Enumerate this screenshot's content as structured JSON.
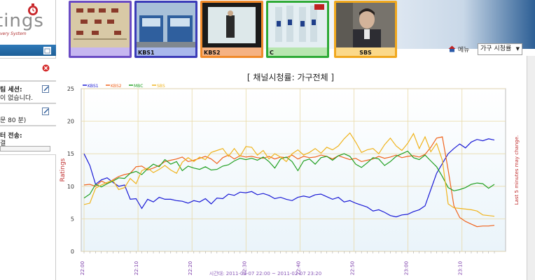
{
  "sidebar": {
    "logo_text": "tings",
    "logo_sub": "very System",
    "panel1": {
      "line1": "팀 세션:",
      "line2": "이 없습니다."
    },
    "panel2": {
      "line1": "문 80 분)"
    },
    "panel3": {
      "line1": "터 전송:",
      "line2": "결"
    }
  },
  "thumbnails": [
    {
      "label": "",
      "border": "#6a4bc4",
      "bg": "#d8c9a6"
    },
    {
      "label": "KBS1",
      "border": "#3b3bb8",
      "bg": "#7a99bb"
    },
    {
      "label": "KBS2",
      "border": "#f08a2a",
      "bg": "#cfdde0"
    },
    {
      "label": "C",
      "border": "#2eaa36",
      "bg": "#d8e8ee"
    },
    {
      "label": "SBS",
      "border": "#f0a81e",
      "bg": "#8f8a80"
    }
  ],
  "toolbar": {
    "menu_label": "메뉴",
    "select_value": "가구 시청률"
  },
  "chart_data": {
    "type": "line",
    "title": "[ 채널시청률: 가구전체 ]",
    "ylabel": "Ratings",
    "ylabel_right": "Last 5 minutes may change.",
    "xlabel": "시간대: 2011-02-07 22:00 ~ 2011-02-07 23:20",
    "ylim": [
      0,
      25
    ],
    "yticks": [
      "0",
      "5",
      "10",
      "15",
      "20",
      "25"
    ],
    "xticks": [
      "22:00",
      "22:10",
      "22:20",
      "22:30",
      "22:40",
      "22:50",
      "23:00",
      "23:10"
    ],
    "legend_position": "top-left",
    "series": [
      {
        "name": "KBS1",
        "color": "#1a1ad6",
        "values": [
          15.0,
          13.2,
          10.3,
          11.0,
          11.3,
          10.6,
          10.0,
          10.2,
          8.0,
          8.1,
          6.6,
          8.0,
          7.6,
          8.3,
          8.0,
          8.0,
          7.8,
          7.7,
          7.4,
          7.8,
          7.6,
          8.1,
          7.3,
          8.2,
          8.1,
          8.8,
          8.6,
          9.1,
          9.0,
          9.2,
          8.7,
          8.9,
          8.6,
          8.1,
          8.3,
          8.0,
          7.8,
          8.3,
          8.5,
          8.3,
          8.7,
          8.8,
          8.4,
          8.0,
          8.3,
          7.6,
          7.8,
          7.4,
          7.1,
          6.8,
          6.2,
          6.4,
          6.0,
          5.5,
          5.3,
          5.6,
          5.7,
          6.1,
          6.4,
          7.0,
          9.5,
          12.0,
          13.5,
          15.0,
          15.8,
          16.5,
          15.9,
          16.8,
          17.2,
          17.0,
          17.3,
          17.1
        ]
      },
      {
        "name": "KBS2",
        "color": "#f0641e",
        "values": [
          10.2,
          10.3,
          10.0,
          10.8,
          10.4,
          11.0,
          11.5,
          11.8,
          12.0,
          13.0,
          13.1,
          12.5,
          12.8,
          13.2,
          13.8,
          14.0,
          14.2,
          14.5,
          13.8,
          14.0,
          14.3,
          14.6,
          14.2,
          13.5,
          14.4,
          14.8,
          14.2,
          14.7,
          14.5,
          14.6,
          14.4,
          14.3,
          14.6,
          14.2,
          14.5,
          14.4,
          14.8,
          14.2,
          14.6,
          14.4,
          14.5,
          14.8,
          14.6,
          14.2,
          14.7,
          14.4,
          14.1,
          14.3,
          13.8,
          14.0,
          14.2,
          14.6,
          14.3,
          14.5,
          14.8,
          14.4,
          14.6,
          14.7,
          14.5,
          14.9,
          16.0,
          17.4,
          17.6,
          12.5,
          7.0,
          5.2,
          4.6,
          4.2,
          3.8,
          3.9,
          3.9,
          4.0
        ]
      },
      {
        "name": "MBC",
        "color": "#22a022",
        "values": [
          8.2,
          8.8,
          10.3,
          9.9,
          10.4,
          10.8,
          11.3,
          11.2,
          12.0,
          12.3,
          11.8,
          12.7,
          13.4,
          13.0,
          14.1,
          13.4,
          13.8,
          12.4,
          13.1,
          12.8,
          12.6,
          13.0,
          12.5,
          12.6,
          13.1,
          13.3,
          13.9,
          14.3,
          14.1,
          14.3,
          14.0,
          14.5,
          13.8,
          12.8,
          14.2,
          14.5,
          13.8,
          12.4,
          13.9,
          14.2,
          13.4,
          14.4,
          14.6,
          14.0,
          14.7,
          15.0,
          14.6,
          13.4,
          12.9,
          13.6,
          14.4,
          14.2,
          13.2,
          13.8,
          14.6,
          15.0,
          15.4,
          14.4,
          14.1,
          14.8,
          13.9,
          13.0,
          11.5,
          9.8,
          9.3,
          9.5,
          9.8,
          10.3,
          10.5,
          10.4,
          9.7,
          10.3
        ]
      },
      {
        "name": "SBS",
        "color": "#f0b41e",
        "values": [
          7.2,
          7.4,
          9.7,
          10.2,
          10.6,
          10.9,
          9.5,
          9.8,
          11.2,
          10.4,
          12.4,
          12.8,
          12.1,
          12.6,
          13.2,
          12.5,
          12.0,
          13.7,
          14.4,
          13.8,
          14.5,
          14.1,
          15.2,
          15.5,
          15.8,
          14.6,
          15.8,
          14.6,
          16.1,
          16.0,
          14.8,
          15.5,
          14.2,
          15.0,
          14.5,
          13.8,
          15.0,
          15.6,
          14.8,
          15.2,
          15.8,
          15.1,
          16.0,
          15.6,
          16.2,
          17.3,
          18.2,
          16.8,
          15.2,
          15.6,
          15.8,
          15.0,
          16.4,
          17.4,
          16.2,
          15.5,
          16.6,
          18.1,
          15.8,
          17.6,
          15.3,
          16.6,
          14.0,
          7.3,
          6.7,
          6.6,
          6.5,
          6.4,
          6.2,
          5.6,
          5.5,
          5.4
        ]
      }
    ]
  }
}
